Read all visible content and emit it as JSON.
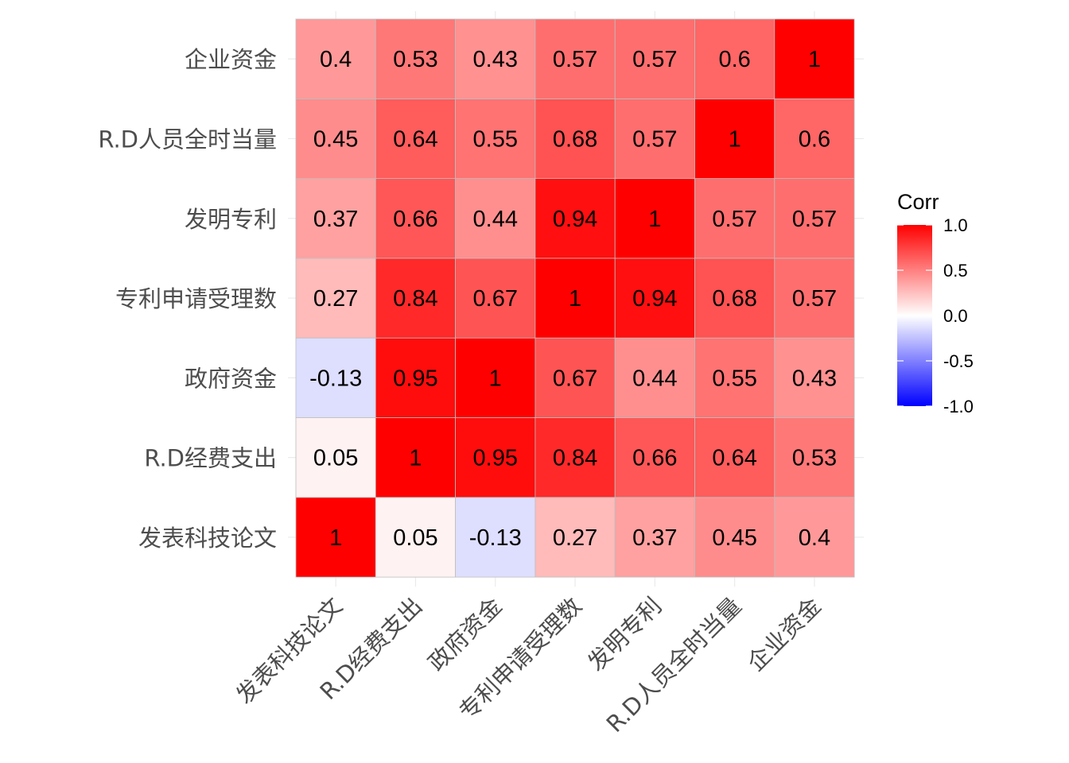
{
  "chart_data": {
    "type": "heatmap",
    "title": "",
    "xlabel": "",
    "ylabel": "",
    "categories": [
      "发表科技论文",
      "R.D经费支出",
      "政府资金",
      "专利申请受理数",
      "发明专利",
      "R.D人员全时当量",
      "企业资金"
    ],
    "matrix": [
      [
        1,
        0.05,
        -0.13,
        0.27,
        0.37,
        0.45,
        0.4
      ],
      [
        0.05,
        1,
        0.95,
        0.84,
        0.66,
        0.64,
        0.53
      ],
      [
        -0.13,
        0.95,
        1,
        0.67,
        0.44,
        0.55,
        0.43
      ],
      [
        0.27,
        0.84,
        0.67,
        1,
        0.94,
        0.68,
        0.57
      ],
      [
        0.37,
        0.66,
        0.44,
        0.94,
        1,
        0.57,
        0.57
      ],
      [
        0.45,
        0.64,
        0.55,
        0.68,
        0.57,
        1,
        0.6
      ],
      [
        0.4,
        0.53,
        0.43,
        0.57,
        0.57,
        0.6,
        1
      ]
    ],
    "value_labels_shown": true,
    "color_scale": {
      "low": "#0000ff",
      "mid": "#ffffff",
      "high": "#ff0000",
      "limits": [
        -1,
        1
      ]
    },
    "legend": {
      "title": "Corr",
      "ticks": [
        {
          "value": 1.0,
          "label": "1.0"
        },
        {
          "value": 0.5,
          "label": "0.5"
        },
        {
          "value": 0.0,
          "label": "0.0"
        },
        {
          "value": -0.5,
          "label": "-0.5"
        },
        {
          "value": -1.0,
          "label": "-1.0"
        }
      ],
      "position": "right"
    },
    "grid": true
  }
}
